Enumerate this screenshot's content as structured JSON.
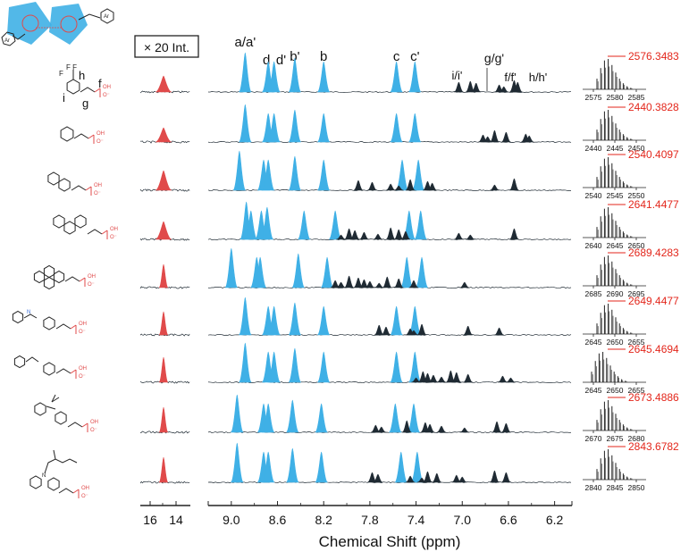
{
  "chart_data": {
    "type": "line",
    "title": "",
    "xlabel": "Chemical Shift (ppm)",
    "ylabel": "",
    "xlim": [
      9.2,
      6.05
    ],
    "x_ticks": [
      "9.0",
      "8.6",
      "8.2",
      "7.8",
      "7.4",
      "7.0",
      "6.6",
      "6.2"
    ],
    "inset_label": "× 20 Int.",
    "inset_ticks": [
      "16",
      "14"
    ],
    "peak_labels": [
      {
        "text": "a/a'",
        "ppm": 8.88
      },
      {
        "text": "d",
        "ppm": 8.68
      },
      {
        "text": "d'",
        "ppm": 8.6
      },
      {
        "text": "b'",
        "ppm": 8.45
      },
      {
        "text": "b",
        "ppm": 8.2
      },
      {
        "text": "c",
        "ppm": 7.57
      },
      {
        "text": "c'",
        "ppm": 7.41
      },
      {
        "text": "i/i'",
        "ppm": 7.03
      },
      {
        "text": "g/g'",
        "ppm": 6.93
      },
      {
        "text": "f/f'",
        "ppm": 6.68
      },
      {
        "text": "h/h'",
        "ppm": 6.52
      }
    ],
    "colors": {
      "cage": "#3fb0e6",
      "ligand": "#1f2a33",
      "oh": "#e04a4a",
      "ms_label": "#e3261b"
    },
    "series": [
      {
        "name": "CF3-styryl phosphonic acid",
        "cage_peaks": [
          8.88,
          8.68,
          8.63,
          8.45,
          8.2,
          7.57,
          7.41
        ],
        "ligand_peaks": [
          7.03,
          6.93,
          6.88,
          6.68,
          6.64,
          6.55,
          6.52
        ],
        "ms_value": "2576.3483",
        "ms_ticks": [
          "2575",
          "2580",
          "2585"
        ]
      },
      {
        "name": "styryl phosphonic acid",
        "cage_peaks": [
          8.88,
          8.68,
          8.63,
          8.45,
          8.2,
          7.57,
          7.41
        ],
        "ligand_peaks": [
          6.82,
          6.78,
          6.72,
          6.62,
          6.45,
          6.42
        ],
        "ms_value": "2440.3828",
        "ms_ticks": [
          "2440",
          "2445",
          "2450"
        ]
      },
      {
        "name": "naphthyl vinyl phosphonic acid",
        "cage_peaks": [
          8.93,
          8.72,
          8.68,
          8.45,
          8.2,
          7.52,
          7.38
        ],
        "ligand_peaks": [
          7.9,
          7.78,
          7.62,
          7.55,
          7.45,
          7.3,
          7.26,
          6.72,
          6.55
        ],
        "ms_value": "2540.4097",
        "ms_ticks": [
          "2540",
          "2545",
          "2550"
        ]
      },
      {
        "name": "anthracenyl vinyl phosphonic acid",
        "cage_peaks": [
          8.87,
          8.83,
          8.74,
          8.69,
          8.37,
          8.1,
          7.46,
          7.36
        ],
        "ligand_peaks": [
          8.05,
          7.98,
          7.93,
          7.85,
          7.73,
          7.62,
          7.55,
          7.49,
          7.03,
          6.93,
          6.55
        ],
        "ms_value": "2641.4477",
        "ms_ticks": [
          "2640",
          "2645",
          "2650"
        ]
      },
      {
        "name": "pyrenyl vinyl phosphonic acid",
        "cage_peaks": [
          9.0,
          8.78,
          8.75,
          8.42,
          8.17,
          7.48,
          7.35
        ],
        "ligand_peaks": [
          8.1,
          8.05,
          7.98,
          7.9,
          7.85,
          7.8,
          7.72,
          7.65,
          7.55,
          7.42,
          6.98
        ],
        "ms_value": "2689.4283",
        "ms_ticks": [
          "2685",
          "2690",
          "2695"
        ]
      },
      {
        "name": "azobenzene vinyl phosphonic acid",
        "cage_peaks": [
          8.88,
          8.68,
          8.63,
          8.45,
          8.2,
          7.57,
          7.41
        ],
        "ligand_peaks": [
          7.72,
          7.66,
          7.45,
          7.42,
          7.35,
          6.95,
          6.68
        ],
        "ms_value": "2649.4477",
        "ms_ticks": [
          "2645",
          "2650",
          "2655"
        ]
      },
      {
        "name": "stilbene vinyl phosphonic acid",
        "cage_peaks": [
          8.88,
          8.68,
          8.63,
          8.45,
          8.2,
          7.57,
          7.41
        ],
        "ligand_peaks": [
          7.4,
          7.34,
          7.3,
          7.25,
          7.18,
          7.1,
          7.05,
          6.95,
          6.65,
          6.58
        ],
        "ms_value": "2645.4694",
        "ms_ticks": [
          "2645",
          "2650",
          "2655"
        ]
      },
      {
        "name": "dimethylfluorene vinyl phosphonic acid",
        "cage_peaks": [
          8.95,
          8.72,
          8.68,
          8.47,
          8.22,
          7.58,
          7.42
        ],
        "ligand_peaks": [
          7.75,
          7.7,
          7.48,
          7.32,
          7.28,
          7.18,
          6.98,
          6.7,
          6.62
        ],
        "ms_value": "2673.4886",
        "ms_ticks": [
          "2670",
          "2675",
          "2680"
        ]
      },
      {
        "name": "N-alkyl carbazole vinyl phosphonic acid",
        "cage_peaks": [
          8.95,
          8.72,
          8.68,
          8.47,
          8.22,
          7.53,
          7.39
        ],
        "ligand_peaks": [
          7.78,
          7.73,
          7.45,
          7.35,
          7.3,
          7.22,
          7.05,
          7.0,
          6.72,
          6.62
        ],
        "ms_value": "2843.6782",
        "ms_ticks": [
          "2840",
          "2845",
          "2850"
        ]
      }
    ]
  },
  "text": {
    "ar_left": "Ar",
    "ar_right": "Ar",
    "structure_labels": {
      "h": "h",
      "i": "i",
      "f": "f",
      "g": "g"
    },
    "oh_labels": [
      "OH",
      "O⁻"
    ]
  }
}
